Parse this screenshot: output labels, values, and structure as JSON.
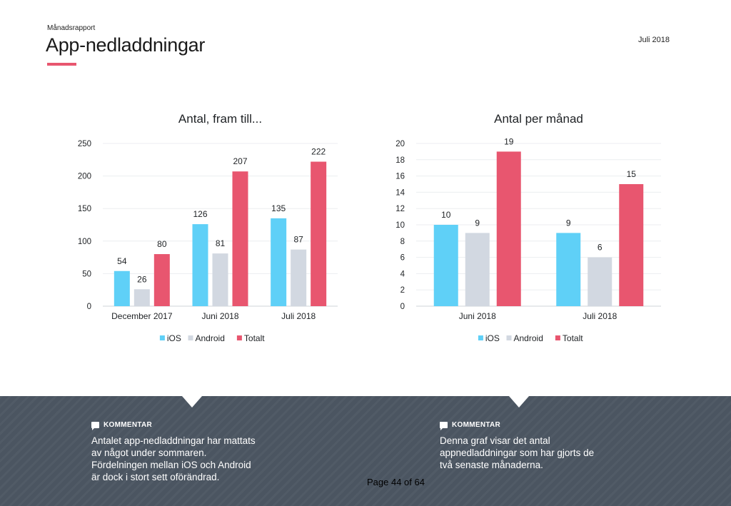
{
  "header": {
    "small": "Månadsrapport",
    "title": "App-nedladdningar",
    "date": "Juli 2018"
  },
  "colors": {
    "ios": "#5fd0f7",
    "android": "#d2d8e1",
    "totalt": "#e8566f",
    "accent": "#e8566f",
    "footer": "#4b5561"
  },
  "chart_data": [
    {
      "type": "bar",
      "title": "Antal, fram till...",
      "categories": [
        "December 2017",
        "Juni 2018",
        "Juli 2018"
      ],
      "series": [
        {
          "name": "iOS",
          "values": [
            54,
            126,
            135
          ]
        },
        {
          "name": "Android",
          "values": [
            26,
            81,
            87
          ]
        },
        {
          "name": "Totalt",
          "values": [
            80,
            207,
            222
          ]
        }
      ],
      "yticks": [
        0,
        50,
        100,
        150,
        200,
        250
      ],
      "ylim": [
        0,
        250
      ],
      "grid": true,
      "data_labels": true,
      "legend_position": "bottom"
    },
    {
      "type": "bar",
      "title": "Antal per månad",
      "categories": [
        "Juni 2018",
        "Juli 2018"
      ],
      "series": [
        {
          "name": "iOS",
          "values": [
            10,
            9
          ]
        },
        {
          "name": "Android",
          "values": [
            9,
            6
          ]
        },
        {
          "name": "Totalt",
          "values": [
            19,
            15
          ]
        }
      ],
      "yticks": [
        0,
        2,
        4,
        6,
        8,
        10,
        12,
        14,
        16,
        18,
        20
      ],
      "ylim": [
        0,
        20
      ],
      "grid": true,
      "data_labels": true,
      "legend_position": "bottom"
    }
  ],
  "comments": [
    {
      "heading": "KOMMENTAR",
      "lines": [
        "Antalet app-nedladdningar har mattats",
        "av något under sommaren.",
        "Fördelningen mellan iOS och Android",
        "är dock i stort sett oförändrad."
      ]
    },
    {
      "heading": "KOMMENTAR",
      "lines": [
        "Denna graf visar det antal",
        "appnedladdningar som har gjorts de",
        "två senaste månaderna."
      ]
    }
  ],
  "page": "Page 44 of 64"
}
